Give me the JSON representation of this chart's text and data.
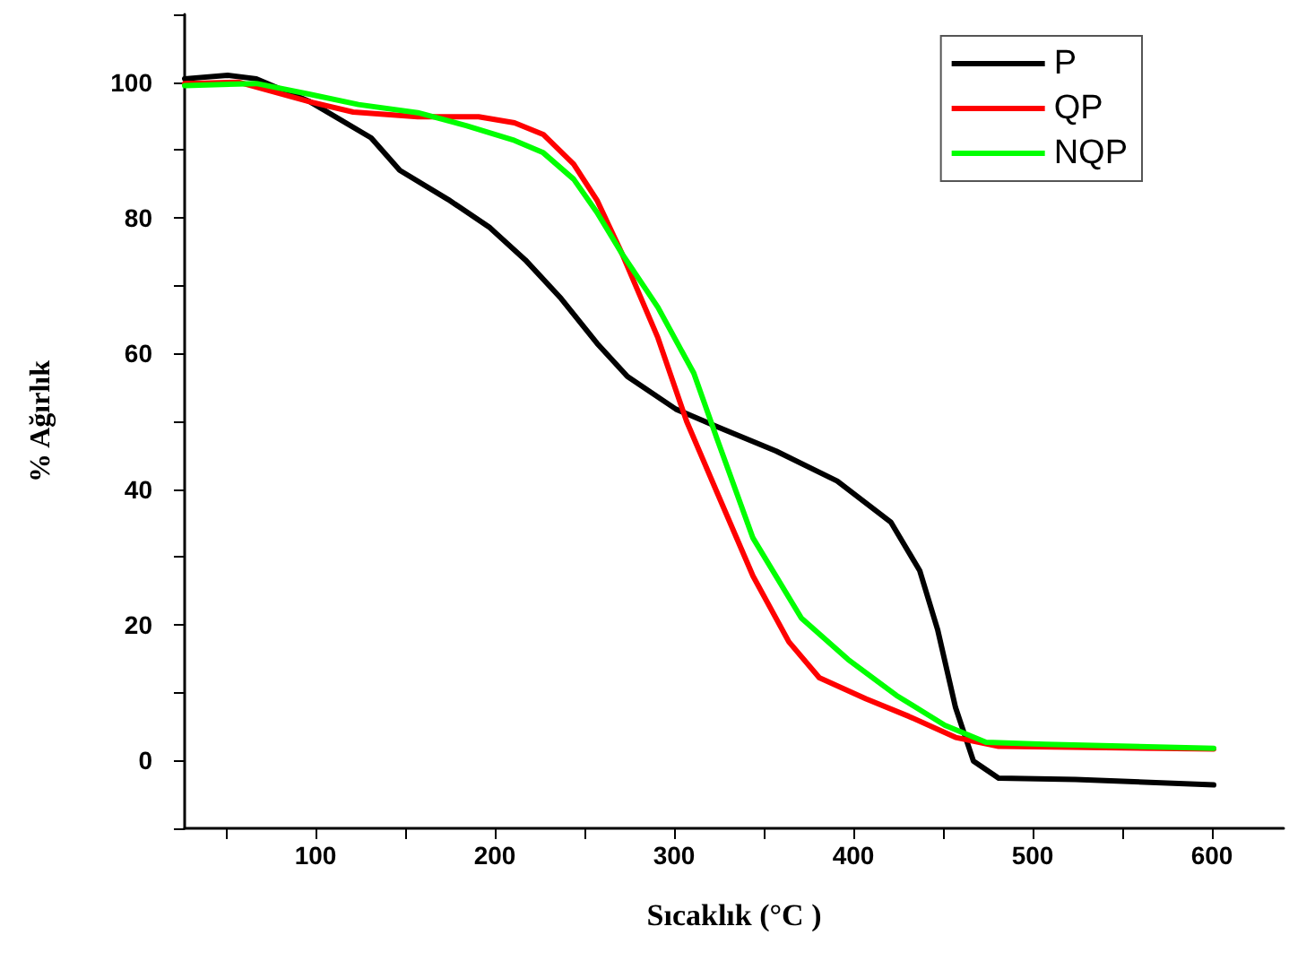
{
  "chart_data": {
    "type": "line",
    "xlabel": "Sıcaklık (°C )",
    "ylabel": "% Ağırlık",
    "xlim": [
      27,
      640
    ],
    "ylim": [
      -10,
      110
    ],
    "xticks": [
      {
        "value": 50,
        "label": null
      },
      100,
      {
        "value": 150,
        "label": null
      },
      200,
      {
        "value": 250,
        "label": null
      },
      300,
      {
        "value": 350,
        "label": null
      },
      400,
      {
        "value": 450,
        "label": null
      },
      500,
      {
        "value": 550,
        "label": null
      },
      600
    ],
    "yticks": [
      {
        "value": -10,
        "label": null
      },
      0,
      {
        "value": 10,
        "label": null
      },
      20,
      {
        "value": 30,
        "label": null
      },
      40,
      {
        "value": 50,
        "label": null
      },
      60,
      {
        "value": 70,
        "label": null
      },
      80,
      {
        "value": 90,
        "label": null
      },
      100,
      {
        "value": 110,
        "label": null
      }
    ],
    "grid": false,
    "legend": "top right",
    "marker": "none",
    "line_style": "solid",
    "series": [
      {
        "name": "P",
        "color": "#000000",
        "x": [
          27,
          51,
          67,
          97,
          131,
          147,
          174,
          197,
          217,
          237,
          257,
          274,
          301,
          324,
          357,
          391,
          421,
          437,
          447,
          457,
          467,
          481,
          524,
          601
        ],
        "values": [
          100.5,
          101,
          100.5,
          97.1,
          91.8,
          87,
          82.7,
          78.6,
          73.8,
          68.1,
          61.5,
          56.6,
          51.8,
          49.2,
          45.6,
          41.2,
          35.1,
          28,
          19.3,
          7.8,
          -0.1,
          -2.6,
          -2.8,
          -3.6
        ]
      },
      {
        "name": "QP",
        "color": "#ff0000",
        "x": [
          27,
          57,
          97,
          121,
          157,
          191,
          211,
          227,
          244,
          257,
          271,
          291,
          307,
          324,
          344,
          364,
          381,
          407,
          431,
          457,
          481,
          601
        ],
        "values": [
          99.8,
          100,
          97.1,
          95.6,
          94.9,
          94.9,
          94,
          92.3,
          87.9,
          82.6,
          74.7,
          62.3,
          50,
          39.5,
          27.2,
          17.5,
          12.2,
          9.1,
          6.5,
          3.4,
          2.1,
          1.7
        ]
      },
      {
        "name": "NQP",
        "color": "#00ff00",
        "x": [
          27,
          67,
          97,
          124,
          157,
          184,
          211,
          227,
          244,
          257,
          271,
          291,
          311,
          324,
          344,
          371,
          397,
          424,
          451,
          474,
          507,
          601
        ],
        "values": [
          99.5,
          99.8,
          98.2,
          96.7,
          95.5,
          93.6,
          91.4,
          89.6,
          85.7,
          80.8,
          74.7,
          66.8,
          57.1,
          47.4,
          32.8,
          21,
          14.9,
          9.6,
          5.2,
          2.7,
          2.4,
          1.8
        ]
      }
    ]
  }
}
